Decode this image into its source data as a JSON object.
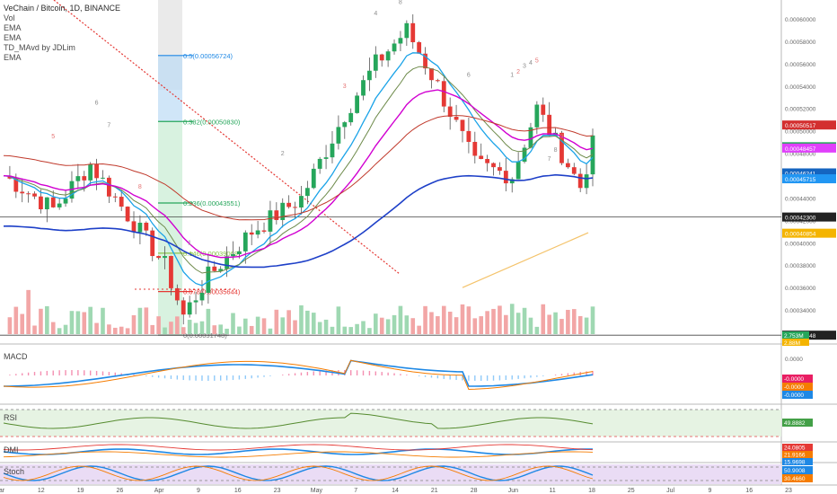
{
  "header": {
    "title": "VeChain / Bitcoin, 1D, BINANCE",
    "indicators": [
      "Vol",
      "EMA",
      "EMA",
      "TD_MAvd by JDLim",
      "EMA"
    ]
  },
  "panes": {
    "macd": "MACD",
    "rsi": "RSI",
    "dmi": "DMI",
    "stoch": "Stoch"
  },
  "price_axis": {
    "ticks": [
      "0.00060000",
      "0.00058000",
      "0.00056000",
      "0.00054000",
      "0.00052000",
      "0.00050000",
      "0.00048000",
      "0.00046000",
      "0.00044000",
      "0.00042000",
      "0.00040000",
      "0.00038000",
      "0.00036000",
      "0.00034000",
      "0.00032000"
    ],
    "tick_values": [
      0.0006,
      0.00058,
      0.00056,
      0.00054,
      0.00052,
      0.0005,
      0.00048,
      0.00046,
      0.00044,
      0.00042,
      0.0004,
      0.00038,
      0.00036,
      0.00034,
      0.00032
    ],
    "badges": [
      {
        "label": "0.00050517",
        "value": 0.00050517,
        "color": "#d32f2f"
      },
      {
        "label": "0.00048580",
        "value": 0.0004858,
        "color": "#26a65b"
      },
      {
        "label": "0.00048487",
        "value": 0.00048487,
        "color": "#26a65b"
      },
      {
        "label": "0.00048457",
        "value": 0.00048457,
        "color": "#e040fb"
      },
      {
        "label": "0.00046241",
        "value": 0.00046241,
        "color": "#1565c0"
      },
      {
        "label": "0.00045715",
        "value": 0.00045715,
        "color": "#2196f3"
      },
      {
        "label": "0.00042300",
        "value": 0.000423,
        "color": "#222222"
      },
      {
        "label": "0.00040854",
        "value": 0.00040854,
        "color": "#f4b400"
      },
      {
        "label": "0.00031748",
        "value": 0.00031748,
        "color": "#222222"
      }
    ],
    "vol_badges": [
      {
        "label": "2.753M",
        "color": "#26a65b"
      },
      {
        "label": "2.88M",
        "color": "#f4b400"
      }
    ]
  },
  "macd_axis": {
    "ticks": [
      "0.0000"
    ],
    "badges": [
      {
        "label": "-0.0000",
        "color": "#e91e63"
      },
      {
        "label": "-0.0000",
        "color": "#f57c00"
      },
      {
        "label": "-0.0000",
        "color": "#1e88e5"
      }
    ]
  },
  "rsi_axis": {
    "badges": [
      {
        "label": "49.8882",
        "color": "#43a047"
      }
    ]
  },
  "dmi_axis": {
    "badges": [
      {
        "label": "24.0805",
        "color": "#e53935"
      },
      {
        "label": "21.9166",
        "color": "#f57c00"
      },
      {
        "label": "15.9698",
        "color": "#1e88e5"
      }
    ]
  },
  "stoch_axis": {
    "badges": [
      {
        "label": "50.9008",
        "color": "#1e88e5"
      },
      {
        "label": "30.4660",
        "color": "#f57c00"
      }
    ]
  },
  "time_axis": {
    "labels": [
      "ar",
      "12",
      "19",
      "26",
      "Apr",
      "9",
      "16",
      "23",
      "May",
      "7",
      "14",
      "21",
      "28",
      "Jun",
      "11",
      "18",
      "25",
      "Jul",
      "9",
      "16",
      "23"
    ]
  },
  "fibonacci": {
    "levels": [
      {
        "label": "0.5(0.00056724)",
        "value": 0.00056724
      },
      {
        "label": "0.382(0.00050830)",
        "value": 0.0005083
      },
      {
        "label": "0.236(0.00043551)",
        "value": 0.00043551
      },
      {
        "label": "0.146(0.00039069)",
        "value": 0.00039069
      },
      {
        "label": "0.078(0.00035644)",
        "value": 0.00035644
      },
      {
        "label": "0(0.00031748)",
        "value": 0.00031748
      }
    ]
  },
  "td_labels": [
    "5",
    "6",
    "7",
    "8",
    "1",
    "2",
    "3",
    "4",
    "8",
    "9",
    "6",
    "1",
    "2",
    "3",
    "4",
    "5",
    "7",
    "8",
    "9"
  ],
  "colors": {
    "up": "#26a65b",
    "down": "#e53935",
    "ema_blue": "#1e40c8",
    "ema_cyan": "#1aa3e8",
    "ema_magenta": "#d100d1",
    "ema_red": "#c0392b",
    "ema_olive": "#6d8a4a",
    "ema_gold": "#f4c36b"
  }
}
